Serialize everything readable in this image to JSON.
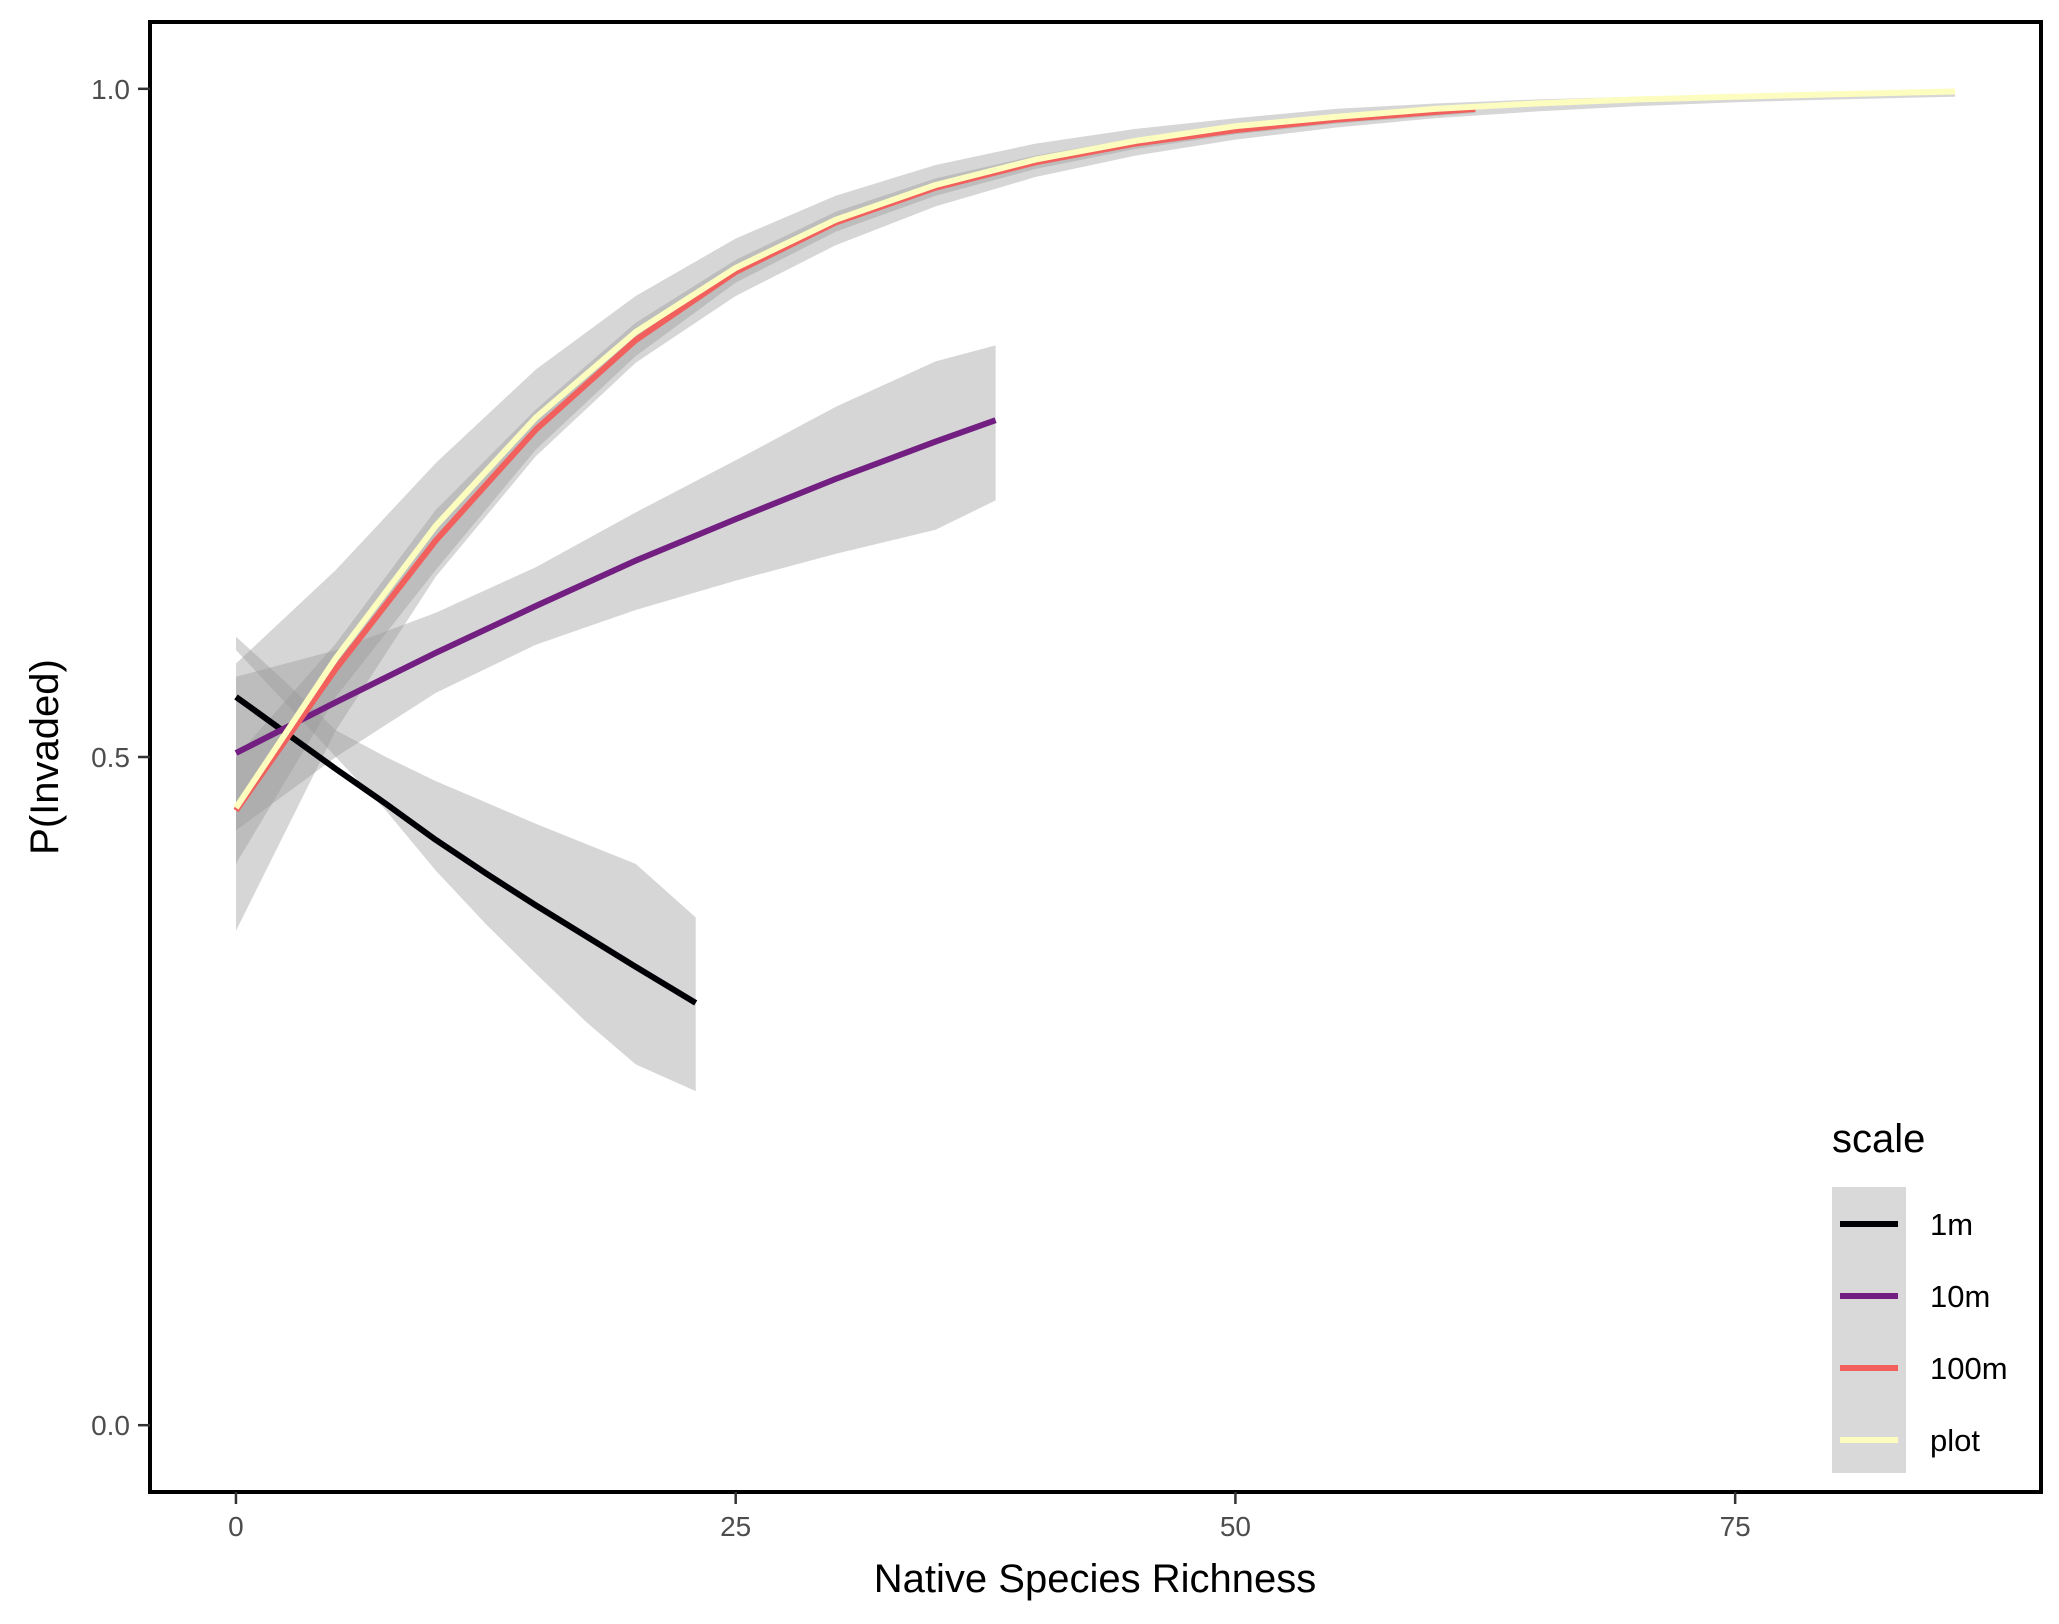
{
  "chart_data": {
    "type": "line",
    "xlabel": "Native Species Richness",
    "ylabel": "P(Invaded)",
    "xlim": [
      -4.3,
      90.3
    ],
    "ylim": [
      -0.05,
      1.05
    ],
    "x_ticks": [
      0,
      25,
      50,
      75
    ],
    "x_tick_labels": [
      "0",
      "25",
      "50",
      "75"
    ],
    "y_ticks": [
      0.0,
      0.5,
      1.0
    ],
    "y_tick_labels": [
      "0.0",
      "0.5",
      "1.0"
    ],
    "grid": false,
    "legend": {
      "title": "scale",
      "position": "bottom-right"
    },
    "series": [
      {
        "name": "1m",
        "color": "#000004",
        "x": [
          0,
          2.5,
          5,
          7.5,
          10,
          12.5,
          15,
          17.5,
          20,
          23
        ],
        "y": [
          0.545,
          0.518,
          0.491,
          0.465,
          0.438,
          0.413,
          0.389,
          0.366,
          0.343,
          0.316
        ],
        "lower": [
          0.58,
          0.54,
          0.5,
          0.46,
          0.415,
          0.375,
          0.338,
          0.302,
          0.27,
          0.25
        ],
        "upper": [
          0.59,
          0.556,
          0.52,
          0.5,
          0.482,
          0.466,
          0.45,
          0.435,
          0.42,
          0.38
        ]
      },
      {
        "name": "10m",
        "color": "#721F81",
        "x": [
          0,
          5,
          10,
          15,
          20,
          25,
          30,
          35,
          38
        ],
        "y": [
          0.503,
          0.541,
          0.578,
          0.613,
          0.647,
          0.678,
          0.708,
          0.736,
          0.752
        ],
        "lower": [
          0.445,
          0.5,
          0.548,
          0.584,
          0.61,
          0.632,
          0.652,
          0.67,
          0.692
        ],
        "upper": [
          0.56,
          0.58,
          0.608,
          0.642,
          0.683,
          0.722,
          0.762,
          0.796,
          0.808
        ]
      },
      {
        "name": "100m",
        "color": "#F1605D",
        "x": [
          0,
          5,
          10,
          15,
          20,
          25,
          30,
          35,
          40,
          45,
          50,
          55,
          62
        ],
        "y": [
          0.46,
          0.566,
          0.662,
          0.745,
          0.812,
          0.863,
          0.9,
          0.926,
          0.945,
          0.959,
          0.969,
          0.977,
          0.985
        ],
        "lower": [
          0.42,
          0.545,
          0.64,
          0.73,
          0.8,
          0.855,
          0.893,
          0.92,
          0.94,
          0.955,
          0.966,
          0.974,
          0.982
        ],
        "upper": [
          0.5,
          0.585,
          0.685,
          0.76,
          0.825,
          0.872,
          0.908,
          0.933,
          0.95,
          0.963,
          0.972,
          0.98,
          0.988
        ]
      },
      {
        "name": "plot",
        "color": "#FCFDBF",
        "x": [
          0,
          5,
          10,
          15,
          20,
          25,
          30,
          35,
          40,
          45,
          50,
          55,
          60,
          65,
          70,
          75,
          80,
          86
        ],
        "y": [
          0.462,
          0.574,
          0.673,
          0.754,
          0.818,
          0.866,
          0.902,
          0.928,
          0.947,
          0.961,
          0.972,
          0.979,
          0.985,
          0.989,
          0.992,
          0.994,
          0.996,
          0.998
        ],
        "lower": [
          0.37,
          0.52,
          0.635,
          0.725,
          0.795,
          0.845,
          0.883,
          0.912,
          0.934,
          0.95,
          0.962,
          0.971,
          0.978,
          0.983,
          0.987,
          0.99,
          0.992,
          0.994
        ],
        "upper": [
          0.57,
          0.64,
          0.72,
          0.79,
          0.845,
          0.888,
          0.92,
          0.943,
          0.959,
          0.97,
          0.978,
          0.985,
          0.989,
          0.992,
          0.994,
          0.996,
          0.997,
          0.999
        ]
      }
    ]
  }
}
